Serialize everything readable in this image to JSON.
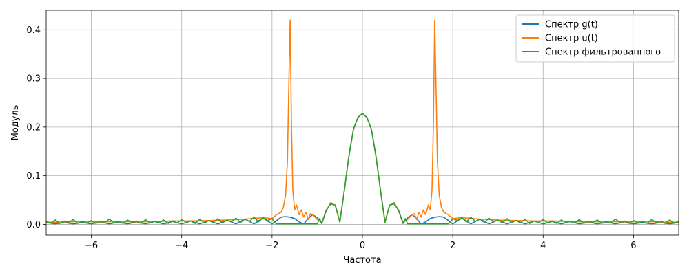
{
  "chart_data": {
    "type": "line",
    "title": "",
    "xlabel": "Частота",
    "ylabel": "Модуль",
    "xlim": [
      -7,
      7
    ],
    "ylim": [
      -0.022,
      0.44
    ],
    "xticks": [
      -6,
      -4,
      -2,
      0,
      2,
      4,
      6
    ],
    "xtick_labels": [
      "−6",
      "−4",
      "−2",
      "0",
      "2",
      "4",
      "6"
    ],
    "yticks": [
      0.0,
      0.1,
      0.2,
      0.3,
      0.4
    ],
    "ytick_labels": [
      "0.0",
      "0.1",
      "0.2",
      "0.3",
      "0.4"
    ],
    "grid": true,
    "legend_position": "top-right",
    "series": [
      {
        "name": "Спектр g(t)",
        "color": "#1f77b4",
        "x": [
          -7,
          -6.8,
          -6.6,
          -6.4,
          -6.2,
          -6,
          -5.8,
          -5.6,
          -5.4,
          -5.2,
          -5,
          -4.8,
          -4.6,
          -4.4,
          -4.2,
          -4,
          -3.8,
          -3.6,
          -3.4,
          -3.2,
          -3,
          -2.8,
          -2.6,
          -2.4,
          -2.2,
          -2,
          -1.9,
          -1.8,
          -1.7,
          -1.6,
          -1.5,
          -1.4,
          -1.3,
          -1.2,
          -1.1,
          -1.0,
          -0.9,
          -0.8,
          -0.7,
          -0.6,
          -0.5,
          -0.4,
          -0.3,
          -0.2,
          -0.1,
          0,
          0.1,
          0.2,
          0.3,
          0.4,
          0.5,
          0.6,
          0.7,
          0.8,
          0.9,
          1.0,
          1.1,
          1.2,
          1.3,
          1.4,
          1.5,
          1.6,
          1.7,
          1.8,
          1.9,
          2,
          2.2,
          2.4,
          2.6,
          2.8,
          3,
          3.2,
          3.4,
          3.6,
          3.8,
          4,
          4.2,
          4.4,
          4.6,
          4.8,
          5,
          5.2,
          5.4,
          5.6,
          5.8,
          6,
          6.2,
          6.4,
          6.6,
          6.8,
          7
        ],
        "y": [
          0.004,
          0.001,
          0.004,
          0.001,
          0.004,
          0.001,
          0.005,
          0.001,
          0.005,
          0.001,
          0.005,
          0.001,
          0.006,
          0.001,
          0.006,
          0.001,
          0.007,
          0.001,
          0.008,
          0.001,
          0.009,
          0.001,
          0.011,
          0.001,
          0.013,
          0.001,
          0.008,
          0.015,
          0.016,
          0.015,
          0.012,
          0.005,
          0.001,
          0.012,
          0.02,
          0.014,
          0.002,
          0.028,
          0.045,
          0.038,
          0.005,
          0.07,
          0.14,
          0.195,
          0.22,
          0.228,
          0.22,
          0.195,
          0.14,
          0.07,
          0.005,
          0.038,
          0.045,
          0.028,
          0.002,
          0.014,
          0.02,
          0.012,
          0.001,
          0.005,
          0.012,
          0.015,
          0.016,
          0.015,
          0.008,
          0.001,
          0.013,
          0.001,
          0.011,
          0.001,
          0.009,
          0.001,
          0.008,
          0.001,
          0.007,
          0.001,
          0.006,
          0.001,
          0.006,
          0.001,
          0.005,
          0.001,
          0.005,
          0.001,
          0.005,
          0.001,
          0.004,
          0.001,
          0.004,
          0.001,
          0.004
        ]
      },
      {
        "name": "Спектр u(t)",
        "color": "#ff7f0e",
        "x": [
          -7,
          -6.6,
          -6.2,
          -5.8,
          -5.4,
          -5,
          -4.6,
          -4.2,
          -3.8,
          -3.4,
          -3,
          -2.6,
          -2.2,
          -2.0,
          -1.9,
          -1.8,
          -1.75,
          -1.7,
          -1.66,
          -1.63,
          -1.6,
          -1.57,
          -1.54,
          -1.5,
          -1.46,
          -1.4,
          -1.35,
          -1.3,
          -1.25,
          -1.2,
          -1.15,
          -1.1,
          -1.0,
          -0.9,
          -0.8,
          -0.7,
          -0.6,
          -0.5,
          -0.4,
          -0.3,
          -0.2,
          -0.1,
          0,
          0.1,
          0.2,
          0.3,
          0.4,
          0.5,
          0.6,
          0.7,
          0.8,
          0.9,
          1.0,
          1.1,
          1.15,
          1.2,
          1.25,
          1.3,
          1.35,
          1.4,
          1.46,
          1.5,
          1.54,
          1.57,
          1.6,
          1.63,
          1.66,
          1.7,
          1.75,
          1.8,
          1.9,
          2.0,
          2.2,
          2.6,
          3,
          3.4,
          3.8,
          4.2,
          4.6,
          5,
          5.4,
          5.8,
          6.2,
          6.6,
          7
        ],
        "y": [
          0.004,
          0.005,
          0.006,
          0.005,
          0.006,
          0.005,
          0.006,
          0.007,
          0.007,
          0.008,
          0.009,
          0.011,
          0.014,
          0.012,
          0.02,
          0.025,
          0.035,
          0.06,
          0.13,
          0.28,
          0.42,
          0.2,
          0.07,
          0.03,
          0.04,
          0.02,
          0.03,
          0.015,
          0.025,
          0.01,
          0.022,
          0.02,
          0.01,
          0.004,
          0.028,
          0.045,
          0.038,
          0.005,
          0.07,
          0.14,
          0.195,
          0.22,
          0.228,
          0.22,
          0.195,
          0.14,
          0.07,
          0.005,
          0.038,
          0.045,
          0.028,
          0.004,
          0.01,
          0.02,
          0.022,
          0.01,
          0.025,
          0.015,
          0.03,
          0.02,
          0.04,
          0.03,
          0.07,
          0.2,
          0.42,
          0.28,
          0.13,
          0.06,
          0.035,
          0.025,
          0.02,
          0.012,
          0.014,
          0.011,
          0.009,
          0.008,
          0.007,
          0.007,
          0.006,
          0.005,
          0.006,
          0.005,
          0.006,
          0.005,
          0.004
        ]
      },
      {
        "name": "Спектр фильтрованного",
        "color": "#2ca02c",
        "x": [
          -7,
          -6.9,
          -6.8,
          -6.7,
          -6.6,
          -6.5,
          -6.4,
          -6.3,
          -6.2,
          -6.1,
          -6,
          -5.9,
          -5.8,
          -5.7,
          -5.6,
          -5.5,
          -5.4,
          -5.3,
          -5.2,
          -5.1,
          -5,
          -4.9,
          -4.8,
          -4.7,
          -4.6,
          -4.5,
          -4.4,
          -4.3,
          -4.2,
          -4.1,
          -4,
          -3.9,
          -3.8,
          -3.7,
          -3.6,
          -3.5,
          -3.4,
          -3.3,
          -3.2,
          -3.1,
          -3,
          -2.9,
          -2.8,
          -2.7,
          -2.6,
          -2.5,
          -2.4,
          -2.3,
          -2.2,
          -2.1,
          -2.0,
          -1.95,
          -1.9,
          -1.0,
          -0.95,
          -0.9,
          -0.8,
          -0.7,
          -0.6,
          -0.5,
          -0.4,
          -0.3,
          -0.2,
          -0.1,
          0,
          0.1,
          0.2,
          0.3,
          0.4,
          0.5,
          0.6,
          0.7,
          0.8,
          0.9,
          0.95,
          1.0,
          1.9,
          1.95,
          2.0,
          2.1,
          2.2,
          2.3,
          2.4,
          2.5,
          2.6,
          2.7,
          2.8,
          2.9,
          3,
          3.1,
          3.2,
          3.3,
          3.4,
          3.5,
          3.6,
          3.7,
          3.8,
          3.9,
          4,
          4.1,
          4.2,
          4.3,
          4.4,
          4.5,
          4.6,
          4.7,
          4.8,
          4.9,
          5,
          5.1,
          5.2,
          5.3,
          5.4,
          5.5,
          5.6,
          5.7,
          5.8,
          5.9,
          6,
          6.1,
          6.2,
          6.3,
          6.4,
          6.5,
          6.6,
          6.7,
          6.8,
          6.9,
          7
        ],
        "y": [
          0.006,
          0.003,
          0.009,
          0.002,
          0.007,
          0.004,
          0.01,
          0.002,
          0.006,
          0.003,
          0.008,
          0.002,
          0.007,
          0.004,
          0.011,
          0.003,
          0.006,
          0.002,
          0.009,
          0.004,
          0.007,
          0.002,
          0.01,
          0.003,
          0.006,
          0.004,
          0.009,
          0.002,
          0.007,
          0.003,
          0.01,
          0.004,
          0.007,
          0.002,
          0.011,
          0.003,
          0.008,
          0.004,
          0.012,
          0.003,
          0.009,
          0.005,
          0.013,
          0.004,
          0.011,
          0.006,
          0.015,
          0.005,
          0.014,
          0.008,
          0.012,
          0.005,
          0.001,
          0.001,
          0.012,
          0.002,
          0.03,
          0.042,
          0.04,
          0.004,
          0.07,
          0.14,
          0.195,
          0.22,
          0.228,
          0.22,
          0.195,
          0.14,
          0.07,
          0.004,
          0.04,
          0.042,
          0.03,
          0.002,
          0.012,
          0.001,
          0.001,
          0.005,
          0.012,
          0.008,
          0.014,
          0.005,
          0.015,
          0.006,
          0.011,
          0.004,
          0.013,
          0.005,
          0.009,
          0.003,
          0.012,
          0.004,
          0.008,
          0.003,
          0.011,
          0.002,
          0.007,
          0.004,
          0.01,
          0.003,
          0.007,
          0.002,
          0.009,
          0.004,
          0.006,
          0.003,
          0.01,
          0.002,
          0.007,
          0.004,
          0.009,
          0.002,
          0.006,
          0.003,
          0.011,
          0.004,
          0.007,
          0.002,
          0.008,
          0.003,
          0.006,
          0.002,
          0.01,
          0.004,
          0.007,
          0.002,
          0.009,
          0.003,
          0.006
        ]
      }
    ]
  }
}
